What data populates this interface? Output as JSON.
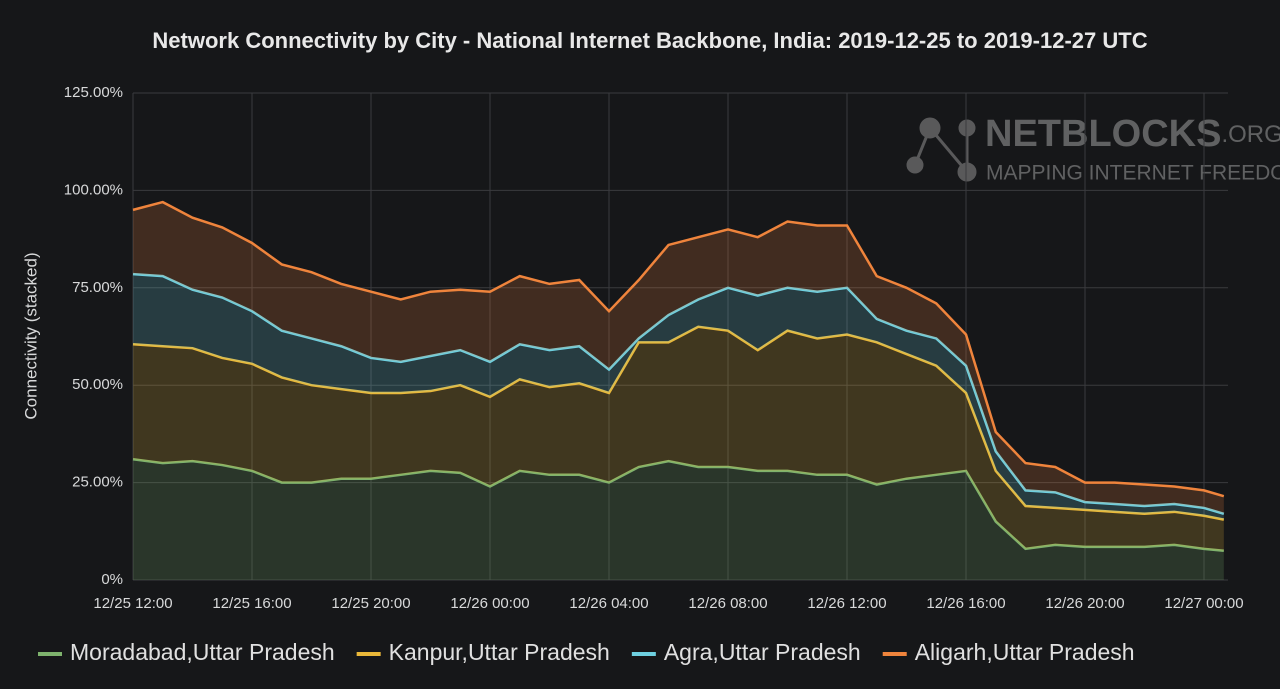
{
  "chart_data": {
    "type": "stacked-area",
    "title": "Network Connectivity by City - National Internet Backbone, India: 2019-12-25 to 2019-12-27 UTC",
    "y_label": "Connectivity (stacked)",
    "watermark": {
      "brand": "NETBLOCKS",
      "suffix": ".ORG",
      "tagline": "MAPPING INTERNET FREEDOM"
    },
    "x": [
      "12/25 12:00",
      "12/25 13:00",
      "12/25 14:00",
      "12/25 15:00",
      "12/25 16:00",
      "12/25 17:00",
      "12/25 18:00",
      "12/25 19:00",
      "12/25 20:00",
      "12/25 21:00",
      "12/25 22:00",
      "12/25 23:00",
      "12/26 00:00",
      "12/26 01:00",
      "12/26 02:00",
      "12/26 03:00",
      "12/26 04:00",
      "12/26 05:00",
      "12/26 06:00",
      "12/26 07:00",
      "12/26 08:00",
      "12/26 09:00",
      "12/26 10:00",
      "12/26 11:00",
      "12/26 12:00",
      "12/26 13:00",
      "12/26 14:00",
      "12/26 15:00",
      "12/26 16:00",
      "12/26 17:00",
      "12/26 18:00",
      "12/26 19:00",
      "12/26 20:00",
      "12/26 21:00",
      "12/26 22:00",
      "12/26 23:00",
      "12/27 00:00",
      "12/27 00:40"
    ],
    "xticks": [
      "12/25 12:00",
      "12/25 16:00",
      "12/25 20:00",
      "12/26 00:00",
      "12/26 04:00",
      "12/26 08:00",
      "12/26 12:00",
      "12/26 16:00",
      "12/26 20:00",
      "12/27 00:00"
    ],
    "ylim": [
      0,
      125
    ],
    "yticks": [
      {
        "value": 0,
        "label": "0%"
      },
      {
        "value": 25,
        "label": "25.00%"
      },
      {
        "value": 50,
        "label": "50.00%"
      },
      {
        "value": 75,
        "label": "75.00%"
      },
      {
        "value": 100,
        "label": "100.00%"
      },
      {
        "value": 125,
        "label": "125.00%"
      }
    ],
    "grid": true,
    "legend": "bottom",
    "series": [
      {
        "name": "Moradabad,Uttar Pradesh",
        "color": "#7eb26d",
        "values": [
          31,
          30,
          30.5,
          29.5,
          28,
          25,
          25,
          26,
          26,
          27,
          28,
          27.5,
          24,
          28,
          27,
          27,
          25,
          29,
          30.5,
          29,
          29,
          28,
          28,
          27,
          27,
          24.5,
          26,
          27,
          28,
          15,
          8,
          9,
          8.5,
          8.5,
          8.5,
          9,
          8,
          7.5
        ]
      },
      {
        "name": "Kanpur,Uttar Pradesh",
        "color": "#eab839",
        "values": [
          29.5,
          30,
          29,
          27.5,
          27.5,
          27,
          25,
          23,
          22,
          21,
          20.5,
          22.5,
          23,
          23.5,
          22.5,
          23.5,
          23,
          32,
          30.5,
          36,
          35,
          31,
          36,
          35,
          36,
          36.5,
          32,
          28,
          20,
          13,
          11,
          9.5,
          9.5,
          9,
          8.5,
          8.5,
          8.5,
          8
        ]
      },
      {
        "name": "Agra,Uttar Pradesh",
        "color": "#6ed0e0",
        "values": [
          18,
          18,
          15,
          15.5,
          13.5,
          12,
          12,
          11,
          9,
          8,
          9,
          9,
          9,
          9,
          9.5,
          9.5,
          6,
          1,
          7,
          7,
          11,
          14,
          11,
          12,
          12,
          6,
          6,
          7,
          7,
          5,
          4,
          4,
          2,
          2,
          2,
          2,
          2,
          1.5
        ]
      },
      {
        "name": "Aligarh,Uttar Pradesh",
        "color": "#ef843c",
        "values": [
          16.5,
          19,
          18.5,
          18,
          17.5,
          17,
          17,
          16,
          17,
          16,
          16.5,
          15.5,
          18,
          17.5,
          17,
          17,
          15,
          15,
          18,
          16,
          15,
          15,
          17,
          17,
          16,
          11,
          11,
          9,
          8,
          5,
          7,
          6.5,
          5,
          5.5,
          5.5,
          4.5,
          4.5,
          4.5
        ]
      }
    ]
  }
}
